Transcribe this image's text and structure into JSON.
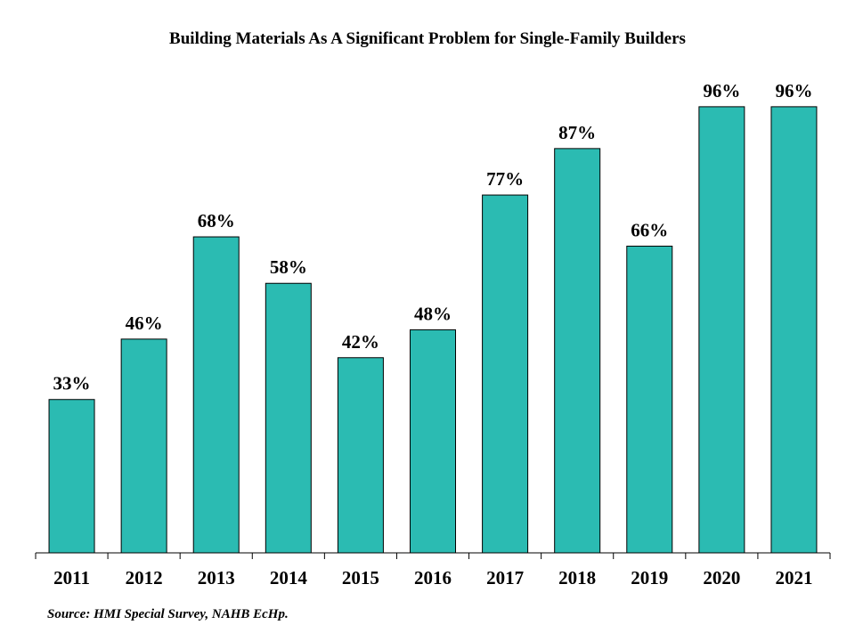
{
  "chart_data": {
    "type": "bar",
    "title": "Building Materials As A Significant Problem for Single-Family Builders",
    "categories": [
      "2011",
      "2012",
      "2013",
      "2014",
      "2015",
      "2016",
      "2017",
      "2018",
      "2019",
      "2020",
      "2021"
    ],
    "values": [
      33,
      46,
      68,
      58,
      42,
      48,
      77,
      87,
      66,
      96,
      96
    ],
    "data_labels": [
      "33%",
      "46%",
      "68%",
      "58%",
      "42%",
      "48%",
      "77%",
      "87%",
      "66%",
      "96%",
      "96%"
    ],
    "xlabel": "",
    "ylabel": "",
    "ylim": [
      0,
      100
    ],
    "grid": false,
    "legend": "none",
    "bar_color": "#2bbbb2",
    "bar_edge_color": "#000000"
  },
  "source": "Source: HMI Special Survey, NAHB EcHp."
}
